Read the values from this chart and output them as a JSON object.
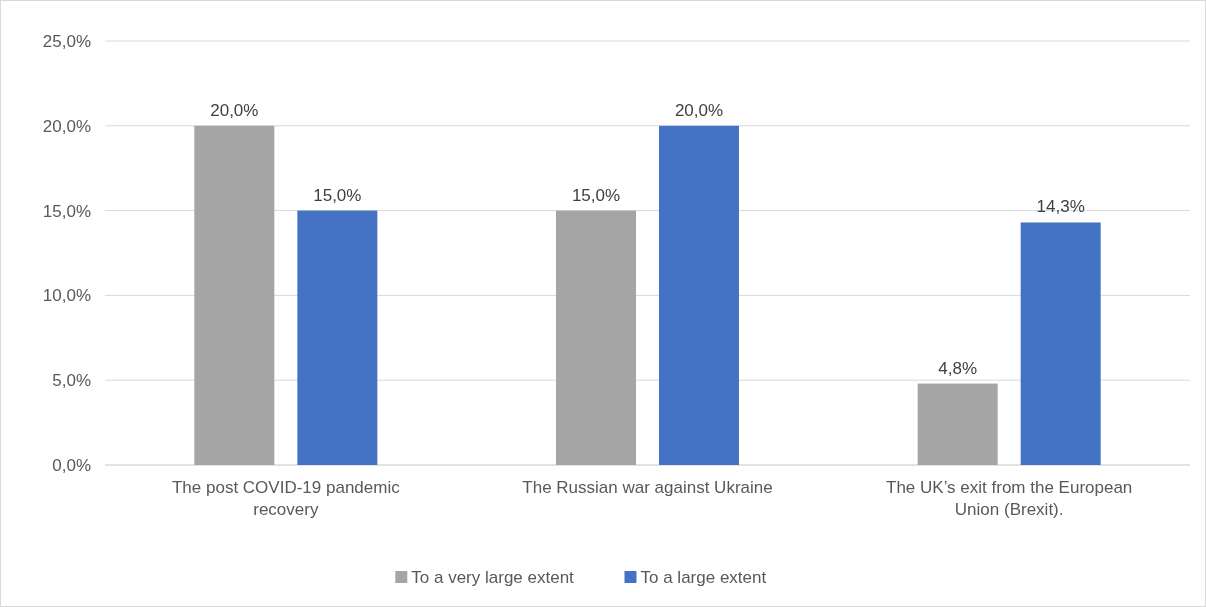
{
  "chart_data": {
    "type": "bar",
    "categories": [
      "The post COVID-19 pandemic recovery",
      "The Russian war against Ukraine",
      "The UK’s exit from the European Union (Brexit)."
    ],
    "series": [
      {
        "name": "To a very large extent",
        "color": "#a5a5a5",
        "values": [
          20,
          15,
          4.8
        ],
        "value_labels": [
          "20,0%",
          "15,0%",
          "4,8%"
        ]
      },
      {
        "name": "To a large extent",
        "color": "#4472c4",
        "values": [
          15,
          20,
          14.3
        ],
        "value_labels": [
          "15,0%",
          "20,0%",
          "14,3%"
        ]
      }
    ],
    "ylim": [
      0,
      25
    ],
    "yticks": [
      {
        "value": 0,
        "label": "0,0%"
      },
      {
        "value": 5,
        "label": "5,0%"
      },
      {
        "value": 10,
        "label": "10,0%"
      },
      {
        "value": 15,
        "label": "15,0%"
      },
      {
        "value": 20,
        "label": "20,0%"
      },
      {
        "value": 25,
        "label": "25,0%"
      }
    ],
    "grid": "y",
    "legend": "bottom"
  }
}
